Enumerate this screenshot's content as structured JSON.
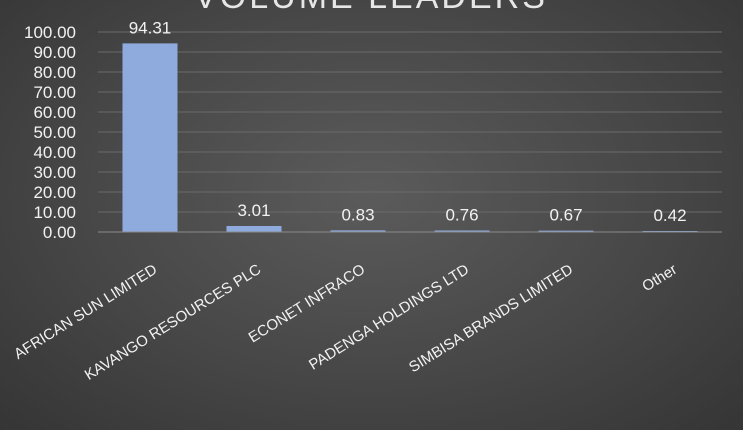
{
  "chart_data": {
    "type": "bar",
    "title": "VOLUME LEADERS",
    "categories": [
      "AFRICAN SUN  LIMITED",
      "KAVANGO RESOURCES PLC",
      "ECONET INFRACO",
      "PADENGA HOLDINGS LTD",
      "SIMBISA BRANDS LIMITED",
      "Other"
    ],
    "values": [
      94.31,
      3.01,
      0.83,
      0.76,
      0.67,
      0.42
    ],
    "data_labels": [
      "94.31",
      "3.01",
      "0.83",
      "0.76",
      "0.67",
      "0.42"
    ],
    "y_ticks": [
      "0.00",
      "10.00",
      "20.00",
      "30.00",
      "40.00",
      "50.00",
      "60.00",
      "70.00",
      "80.00",
      "90.00",
      "100.00"
    ],
    "ylim": [
      0,
      100
    ],
    "grid": true,
    "legend": "none",
    "bar_color": "#8faadc"
  }
}
